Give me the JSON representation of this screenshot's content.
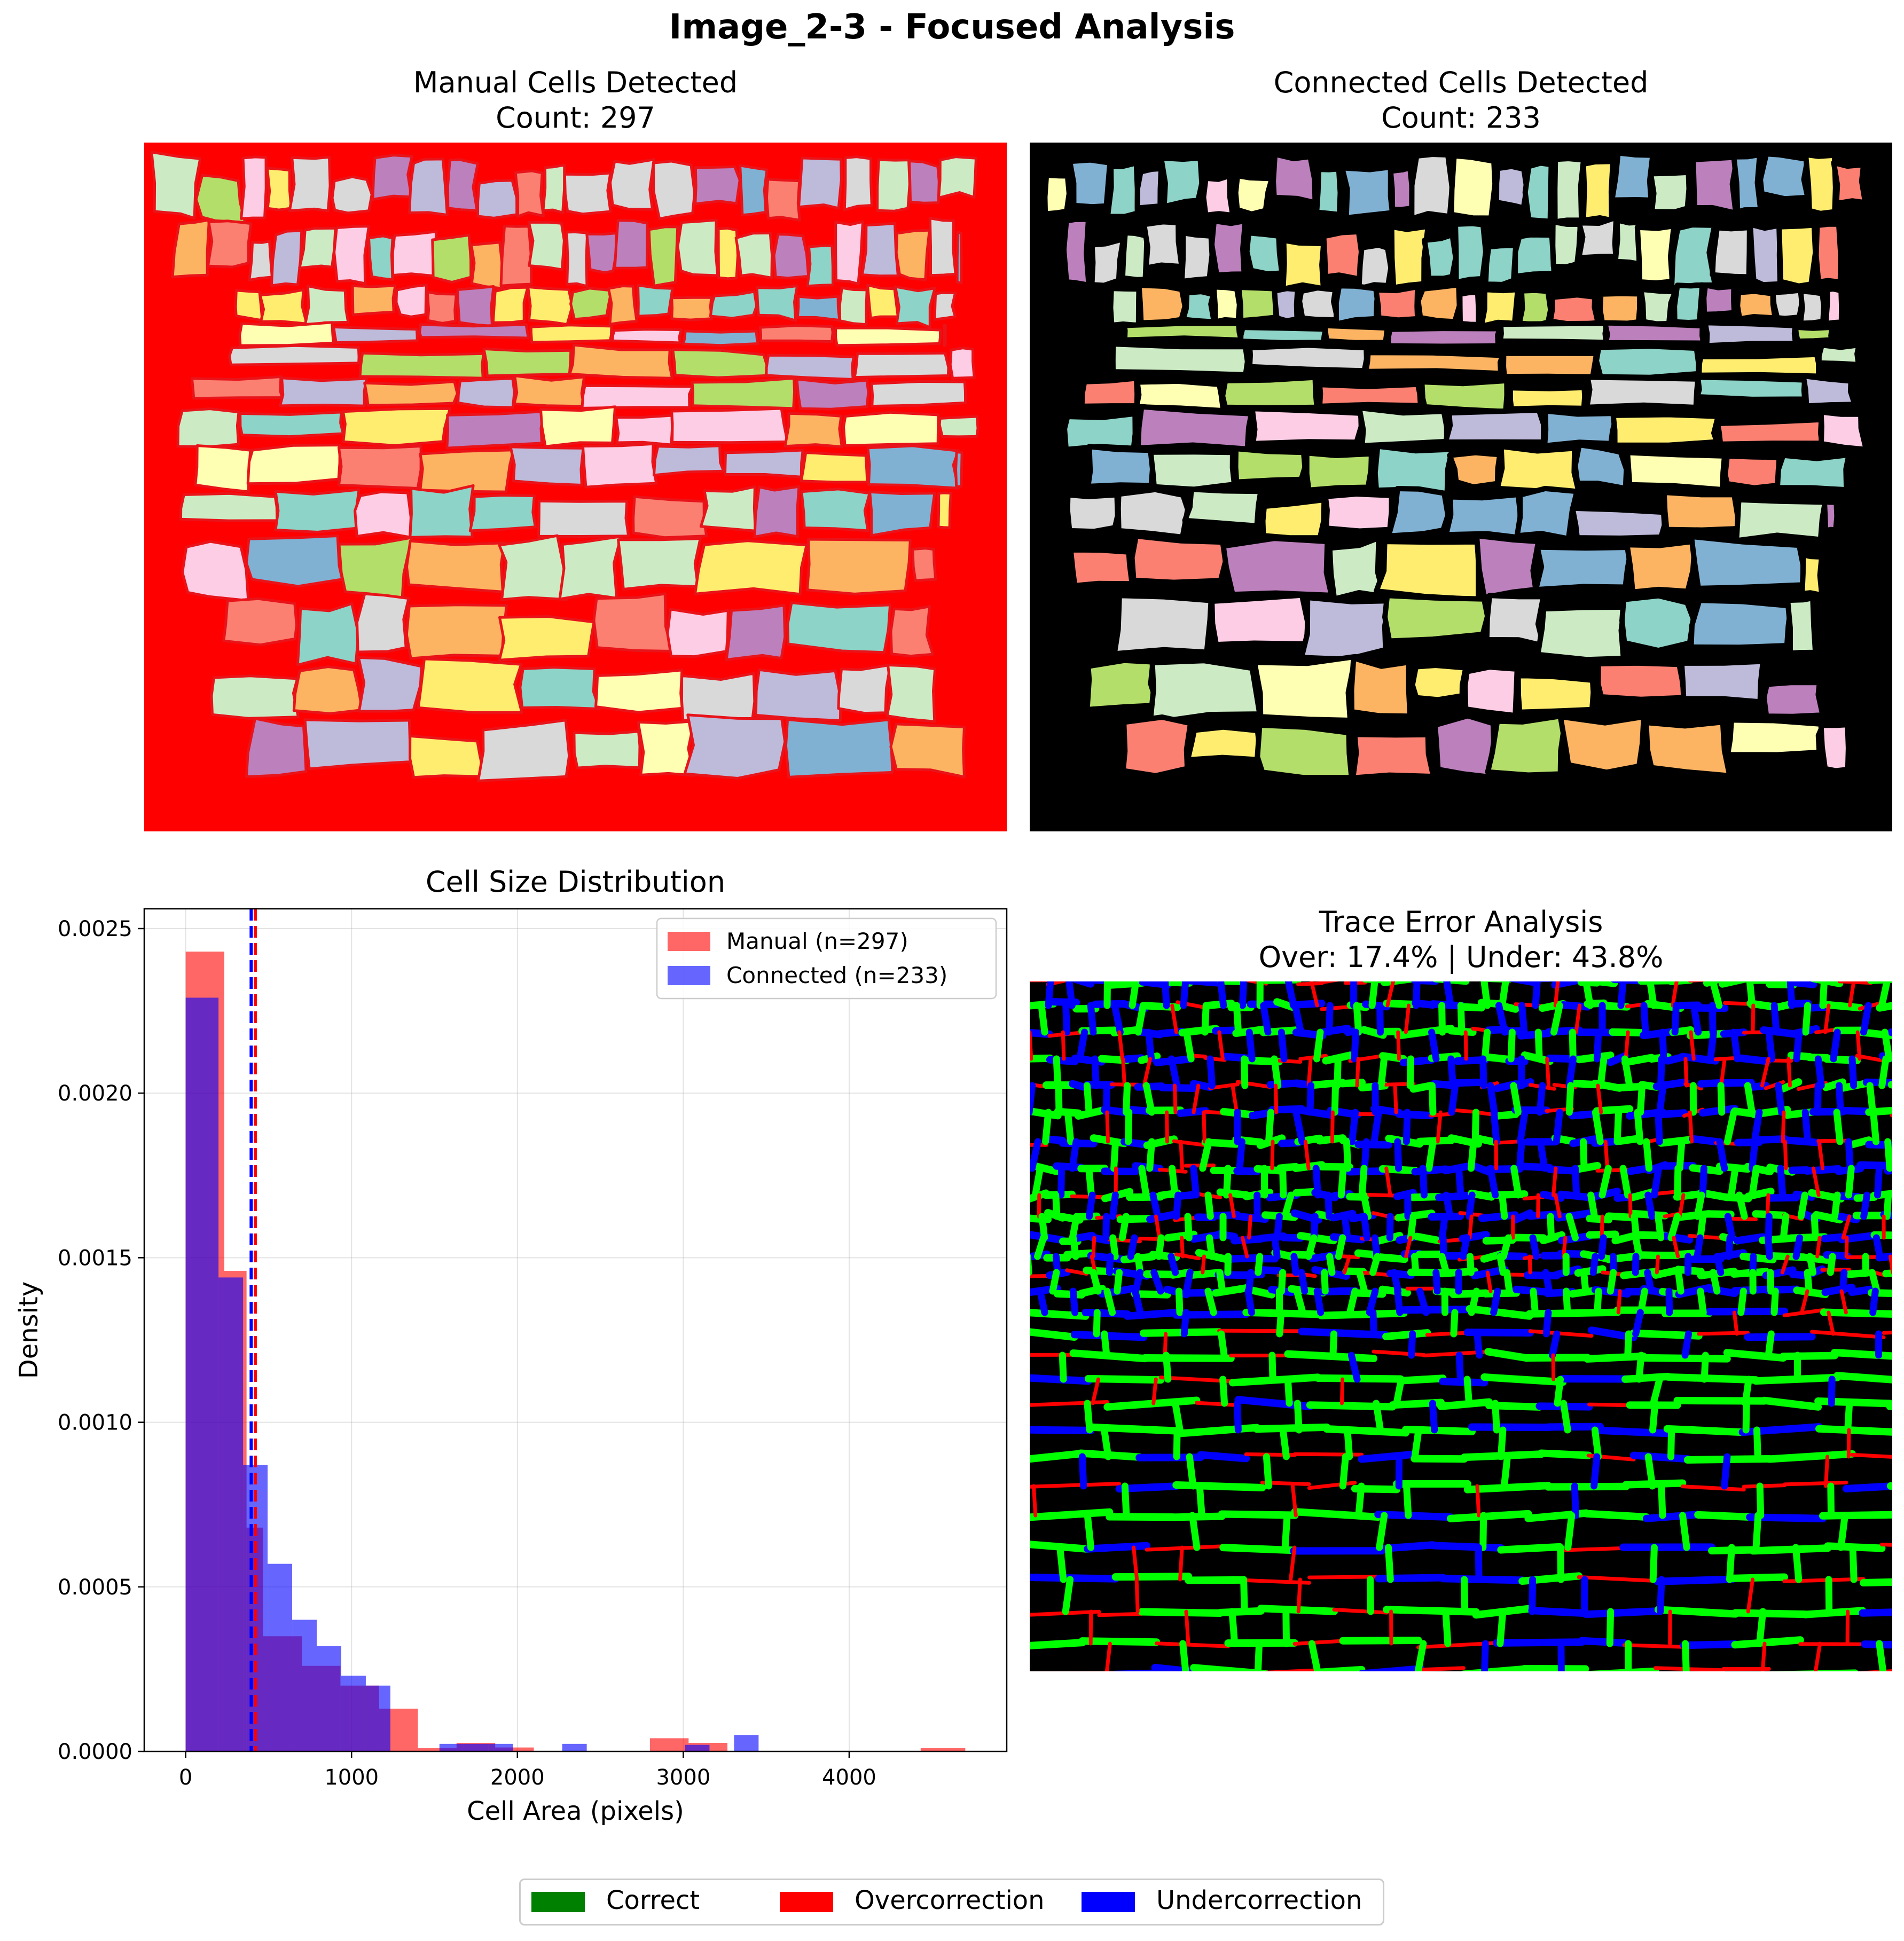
{
  "figure": {
    "title": "Image_2-3 - Focused Analysis",
    "legend_items": [
      {
        "label": "Correct",
        "color": "#008000"
      },
      {
        "label": "Overcorrection",
        "color": "#ff0000"
      },
      {
        "label": "Undercorrection",
        "color": "#0000ff"
      }
    ]
  },
  "panels": {
    "manual": {
      "title": "Manual Cells Detected",
      "subtitle": "Count: 297",
      "background": "#ff0000",
      "border_color": "#e8141a"
    },
    "connected": {
      "title": "Connected Cells Detected",
      "subtitle": "Count: 233",
      "background": "#000000",
      "border_color": "#000000"
    },
    "trace": {
      "title": "Trace Error Analysis",
      "subtitle": "Over: 17.4% | Under: 43.8%",
      "background": "#000000"
    }
  },
  "palette": [
    "#8dd3c7",
    "#ffffb3",
    "#bebada",
    "#fb8072",
    "#80b1d3",
    "#fdb462",
    "#b3de69",
    "#fccde5",
    "#d9d9d9",
    "#bc80bd",
    "#ccebc5",
    "#ffed6f"
  ],
  "trace_colors": {
    "correct": "#00ff00",
    "over": "#ff0000",
    "under": "#0000ff"
  },
  "chart_data": {
    "type": "bar",
    "title": "Cell Size Distribution",
    "xlabel": "Cell Area (pixels)",
    "ylabel": "Density",
    "xlim": [
      -250,
      4950
    ],
    "ylim": [
      0,
      0.00256
    ],
    "xticks": [
      0,
      1000,
      2000,
      3000,
      4000
    ],
    "yticks": [
      0.0,
      0.0005,
      0.001,
      0.0015,
      0.002,
      0.0025
    ],
    "xtick_labels": [
      "0",
      "1000",
      "2000",
      "3000",
      "4000"
    ],
    "ytick_labels": [
      "0.0000",
      "0.0005",
      "0.0010",
      "0.0015",
      "0.0020",
      "0.0025"
    ],
    "grid": true,
    "legend_position": "upper right",
    "series": [
      {
        "name": "Manual (n=297)",
        "color": "#ff0000",
        "alpha": 0.6,
        "bin_edges": [
          0,
          233,
          367,
          466,
          700,
          933,
          1166,
          1400,
          1633,
          1866,
          2099,
          2333,
          2566,
          2799,
          3032,
          3266,
          3499,
          3732,
          3965,
          4198,
          4431,
          4700
        ],
        "values": [
          0.00243,
          0.00146,
          0.00068,
          0.00035,
          0.00026,
          0.0002,
          0.00013,
          1e-05,
          2.6e-05,
          1.2e-05,
          0.0,
          0.0,
          0.0,
          4e-05,
          2.6e-05,
          0.0,
          0.0,
          0.0,
          0.0,
          0.0,
          1e-05
        ],
        "mean": 420
      },
      {
        "name": "Connected (n=233)",
        "color": "#0000ff",
        "alpha": 0.6,
        "bin_edges": [
          0,
          198,
          346,
          494,
          642,
          790,
          938,
          1086,
          1234,
          1382,
          1530,
          1678,
          1826,
          1974,
          2122,
          2270,
          2418,
          2566,
          2714,
          2862,
          3010,
          3158,
          3306,
          3454
        ],
        "values": [
          0.00229,
          0.00144,
          0.00087,
          0.00057,
          0.0004,
          0.00032,
          0.00023,
          0.0002,
          0.0,
          0.0,
          2.3e-05,
          2.3e-05,
          2.3e-05,
          0.0,
          0.0,
          2.3e-05,
          0.0,
          0.0,
          0.0,
          0.0,
          2e-05,
          0.0,
          5e-05
        ],
        "mean": 395
      }
    ]
  }
}
